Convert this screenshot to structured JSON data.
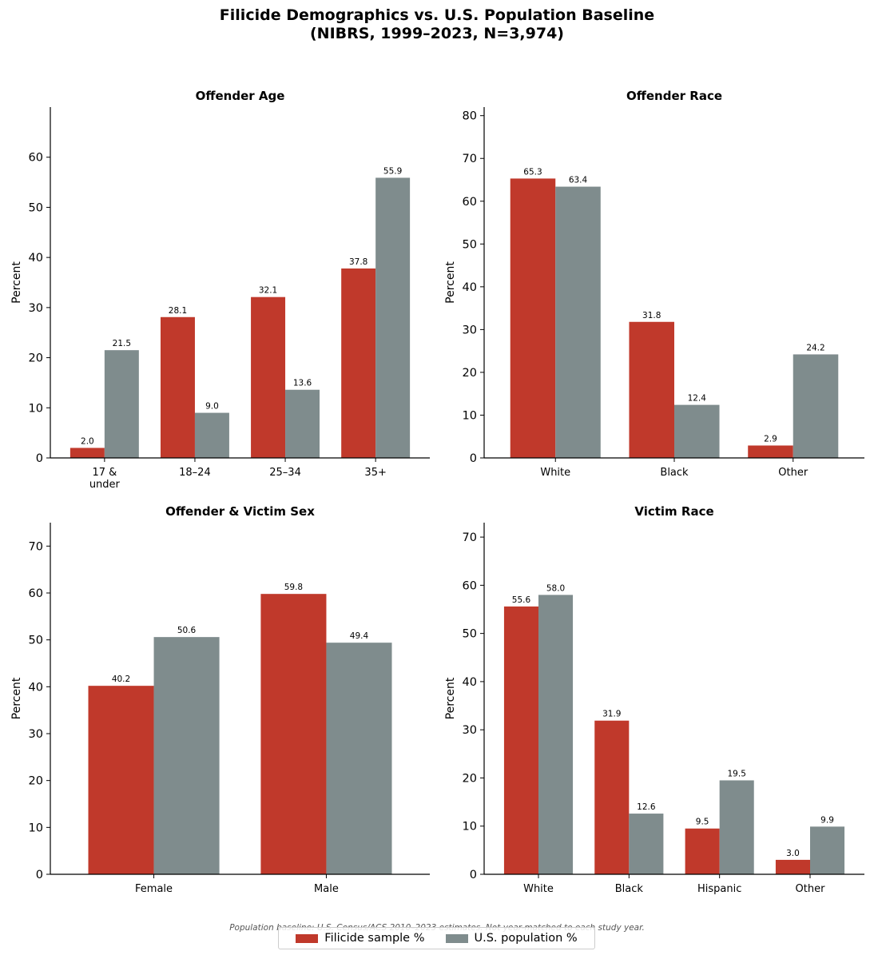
{
  "figure": {
    "title_line1": "Filicide Demographics vs. U.S. Population Baseline",
    "title_line2": "(NIBRS, 1999–2023, N=3,974)",
    "footnote": "Population baseline: U.S. Census/ACS 2010–2023 estimates. Not year-matched to each study year."
  },
  "legend": {
    "items": [
      {
        "label": "Filicide sample %",
        "color": "#c0392b"
      },
      {
        "label": "U.S. population %",
        "color": "#7f8c8d"
      }
    ],
    "placement": "bottom-center"
  },
  "chart_data": [
    {
      "type": "bar",
      "title": "Offender Age",
      "ylabel": "Percent",
      "categories": [
        "17 &\nunder",
        "18–24",
        "25–34",
        "35+"
      ],
      "series": [
        {
          "name": "Filicide sample %",
          "values": [
            2.0,
            28.1,
            32.1,
            37.8
          ],
          "labels": [
            "2.0",
            "28.1",
            "32.1",
            "37.8"
          ],
          "color": "#c0392b"
        },
        {
          "name": "U.S. population %",
          "values": [
            21.5,
            9.0,
            13.6,
            55.9
          ],
          "labels": [
            "21.5",
            "9.0",
            "13.6",
            "55.9"
          ],
          "color": "#7f8c8d"
        }
      ],
      "ylim": [
        0,
        70
      ],
      "yticks": [
        0,
        10,
        20,
        30,
        40,
        50,
        60
      ]
    },
    {
      "type": "bar",
      "title": "Offender Race",
      "ylabel": "Percent",
      "categories": [
        "White",
        "Black",
        "Other"
      ],
      "series": [
        {
          "name": "Filicide sample %",
          "values": [
            65.3,
            31.8,
            2.9
          ],
          "labels": [
            "65.3",
            "31.8",
            "2.9"
          ],
          "color": "#c0392b"
        },
        {
          "name": "U.S. population %",
          "values": [
            63.4,
            12.4,
            24.2
          ],
          "labels": [
            "63.4",
            "12.4",
            "24.2"
          ],
          "color": "#7f8c8d"
        }
      ],
      "ylim": [
        0,
        82
      ],
      "yticks": [
        0,
        10,
        20,
        30,
        40,
        50,
        60,
        70,
        80
      ]
    },
    {
      "type": "bar",
      "title": "Offender & Victim Sex",
      "ylabel": "Percent",
      "categories": [
        "Female",
        "Male"
      ],
      "series": [
        {
          "name": "Filicide sample %",
          "values": [
            40.2,
            59.8
          ],
          "labels": [
            "40.2",
            "59.8"
          ],
          "color": "#c0392b"
        },
        {
          "name": "U.S. population %",
          "values": [
            50.6,
            49.4
          ],
          "labels": [
            "50.6",
            "49.4"
          ],
          "color": "#7f8c8d"
        }
      ],
      "ylim": [
        0,
        75
      ],
      "yticks": [
        0,
        10,
        20,
        30,
        40,
        50,
        60,
        70
      ]
    },
    {
      "type": "bar",
      "title": "Victim Race",
      "ylabel": "Percent",
      "categories": [
        "White",
        "Black",
        "Hispanic",
        "Other"
      ],
      "series": [
        {
          "name": "Filicide sample %",
          "values": [
            55.6,
            31.9,
            9.5,
            3.0
          ],
          "labels": [
            "55.6",
            "31.9",
            "9.5",
            "3.0"
          ],
          "color": "#c0392b"
        },
        {
          "name": "U.S. population %",
          "values": [
            58.0,
            12.6,
            19.5,
            9.9
          ],
          "labels": [
            "58.0",
            "12.6",
            "19.5",
            "9.9"
          ],
          "color": "#7f8c8d"
        }
      ],
      "ylim": [
        0,
        73
      ],
      "yticks": [
        0,
        10,
        20,
        30,
        40,
        50,
        60,
        70
      ]
    }
  ]
}
